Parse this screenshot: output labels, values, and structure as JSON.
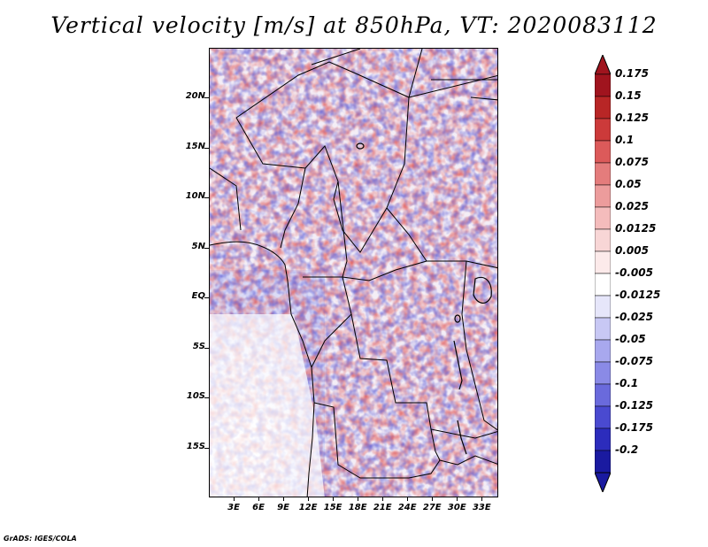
{
  "title": "Vertical velocity [m/s] at 850hPa, VT: 2020083112",
  "map": {
    "region": "Central Africa",
    "lat_range": [
      -20,
      25
    ],
    "lon_range": [
      0,
      35
    ],
    "lat_ticks": [
      {
        "label": "20N",
        "value": 20
      },
      {
        "label": "15N",
        "value": 15
      },
      {
        "label": "10N",
        "value": 10
      },
      {
        "label": "5N",
        "value": 5
      },
      {
        "label": "EQ",
        "value": 0
      },
      {
        "label": "5S",
        "value": -5
      },
      {
        "label": "10S",
        "value": -10
      },
      {
        "label": "15S",
        "value": -15
      }
    ],
    "lon_ticks": [
      {
        "label": "3E",
        "value": 3
      },
      {
        "label": "6E",
        "value": 6
      },
      {
        "label": "9E",
        "value": 9
      },
      {
        "label": "12E",
        "value": 12
      },
      {
        "label": "15E",
        "value": 15
      },
      {
        "label": "18E",
        "value": 18
      },
      {
        "label": "21E",
        "value": 21
      },
      {
        "label": "24E",
        "value": 24
      },
      {
        "label": "27E",
        "value": 27
      },
      {
        "label": "30E",
        "value": 30
      },
      {
        "label": "33E",
        "value": 33
      }
    ]
  },
  "colorbar": {
    "levels": [
      {
        "label": "0.175",
        "color": "#a0141e"
      },
      {
        "label": "0.15",
        "color": "#b82626"
      },
      {
        "label": "0.125",
        "color": "#cc3a3a"
      },
      {
        "label": "0.1",
        "color": "#dc5a5a"
      },
      {
        "label": "0.075",
        "color": "#e47c7c"
      },
      {
        "label": "0.05",
        "color": "#ec9c9c"
      },
      {
        "label": "0.025",
        "color": "#f4bcbc"
      },
      {
        "label": "0.0125",
        "color": "#f8d6d6"
      },
      {
        "label": "0.005",
        "color": "#fceaea"
      },
      {
        "label": "-0.005",
        "color": "#ffffff"
      },
      {
        "label": "-0.0125",
        "color": "#e6e6fa"
      },
      {
        "label": "-0.025",
        "color": "#c8c8f4"
      },
      {
        "label": "-0.05",
        "color": "#a8a8ee"
      },
      {
        "label": "-0.075",
        "color": "#8a8ae6"
      },
      {
        "label": "-0.1",
        "color": "#6a6adc"
      },
      {
        "label": "-0.125",
        "color": "#4a4ad0"
      },
      {
        "label": "-0.175",
        "color": "#2c2cbc"
      },
      {
        "label": "-0.2",
        "color": "#1a1aa0"
      }
    ],
    "top_arrow_color": "#a0141e",
    "bottom_arrow_color": "#1a1aa0"
  },
  "footer": "GrADS: IGES/COLA"
}
